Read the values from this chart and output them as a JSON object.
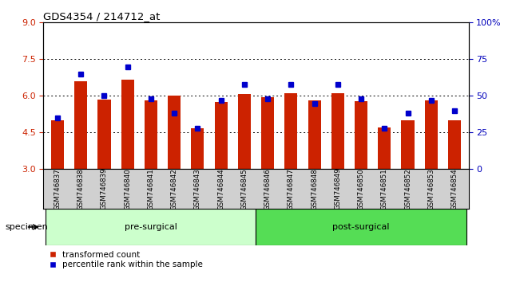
{
  "title": "GDS4354 / 214712_at",
  "specimens": [
    "GSM746837",
    "GSM746838",
    "GSM746839",
    "GSM746840",
    "GSM746841",
    "GSM746842",
    "GSM746843",
    "GSM746844",
    "GSM746845",
    "GSM746846",
    "GSM746847",
    "GSM746848",
    "GSM746849",
    "GSM746850",
    "GSM746851",
    "GSM746852",
    "GSM746853",
    "GSM746854"
  ],
  "bar_values": [
    5.0,
    6.6,
    5.85,
    6.65,
    5.82,
    6.0,
    4.68,
    5.75,
    6.08,
    5.95,
    6.1,
    5.82,
    6.1,
    5.78,
    4.72,
    5.0,
    5.82,
    5.0
  ],
  "dot_values": [
    35,
    65,
    50,
    70,
    48,
    38,
    28,
    47,
    58,
    48,
    58,
    45,
    58,
    48,
    28,
    38,
    47,
    40
  ],
  "pre_surgical_count": 9,
  "post_surgical_count": 9,
  "ylim_left": [
    3,
    9
  ],
  "ylim_right": [
    0,
    100
  ],
  "yticks_left": [
    3,
    4.5,
    6,
    7.5,
    9
  ],
  "yticks_right": [
    0,
    25,
    50,
    75,
    100
  ],
  "bar_color": "#cc2200",
  "dot_color": "#0000cc",
  "pre_color": "#ccffcc",
  "post_color": "#55dd55",
  "label_bg_color": "#d0d0d0",
  "ylabel_left_color": "#cc2200",
  "ylabel_right_color": "#0000bb",
  "legend_labels": [
    "transformed count",
    "percentile rank within the sample"
  ]
}
